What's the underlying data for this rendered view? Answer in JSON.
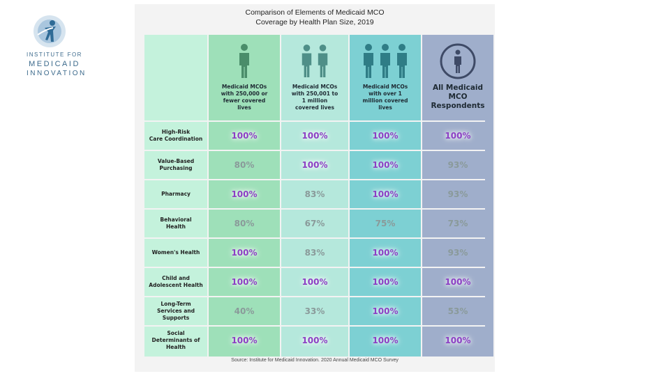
{
  "logo": {
    "line1": "INSTITUTE FOR",
    "line2": "MEDICAID",
    "line3": "INNOVATION"
  },
  "title": {
    "line1": "Comparison of Elements of Medicaid MCO",
    "line2": "Coverage by Health Plan Size, 2019"
  },
  "source": "Source: Institute for Medicaid Innovation. 2020 Annual Medicaid MCO Survey",
  "colors": {
    "label_col": "#c4f2dc",
    "col1": "#9ee0b9",
    "col2": "#b5e8dc",
    "col3": "#7dd0d3",
    "col4": "#9faecb",
    "highlight_text": "#8c3fc4",
    "dim_text": "#8a9a9a"
  },
  "chart_data": {
    "type": "table",
    "title": "Comparison of Elements of Medicaid MCO Coverage by Health Plan Size, 2019",
    "columns": [
      {
        "name": "Medicaid MCOs with 250,000 or fewer covered lives",
        "lines": [
          "Medicaid MCOs",
          "with 250,000 or",
          "fewer covered",
          "lives"
        ],
        "icon_count": 1,
        "icon": "person-icon"
      },
      {
        "name": "Medicaid MCOs with 250,001 to 1 million covered lives",
        "lines": [
          "Medicaid MCOs",
          "with 250,001 to",
          "1 million",
          "covered lives"
        ],
        "icon_count": 2,
        "icon": "person-icon"
      },
      {
        "name": "Medicaid MCOs with over 1 million covered lives",
        "lines": [
          "Medicaid MCOs",
          "with over 1",
          "million covered",
          "lives"
        ],
        "icon_count": 3,
        "icon": "person-icon"
      },
      {
        "name": "All Medicaid MCO Respondents",
        "lines": [
          "All Medicaid",
          "MCO",
          "Respondents"
        ],
        "icon_count": 1,
        "icon": "info-person-circle-icon"
      }
    ],
    "rows": [
      {
        "label_lines": [
          "High-Risk",
          "Care Coordination"
        ],
        "values": [
          "100%",
          "100%",
          "100%",
          "100%"
        ]
      },
      {
        "label_lines": [
          "Value-Based",
          "Purchasing"
        ],
        "values": [
          "80%",
          "100%",
          "100%",
          "93%"
        ]
      },
      {
        "label_lines": [
          "Pharmacy"
        ],
        "values": [
          "100%",
          "83%",
          "100%",
          "93%"
        ]
      },
      {
        "label_lines": [
          "Behavioral",
          "Health"
        ],
        "values": [
          "80%",
          "67%",
          "75%",
          "73%"
        ]
      },
      {
        "label_lines": [
          "Women's Health"
        ],
        "values": [
          "100%",
          "83%",
          "100%",
          "93%"
        ]
      },
      {
        "label_lines": [
          "Child and",
          "Adolescent Health"
        ],
        "values": [
          "100%",
          "100%",
          "100%",
          "100%"
        ]
      },
      {
        "label_lines": [
          "Long-Term",
          "Services and",
          "Supports"
        ],
        "values": [
          "40%",
          "33%",
          "100%",
          "53%"
        ]
      },
      {
        "label_lines": [
          "Social",
          "Determinants of",
          "Health"
        ],
        "values": [
          "100%",
          "100%",
          "100%",
          "100%"
        ]
      }
    ]
  }
}
